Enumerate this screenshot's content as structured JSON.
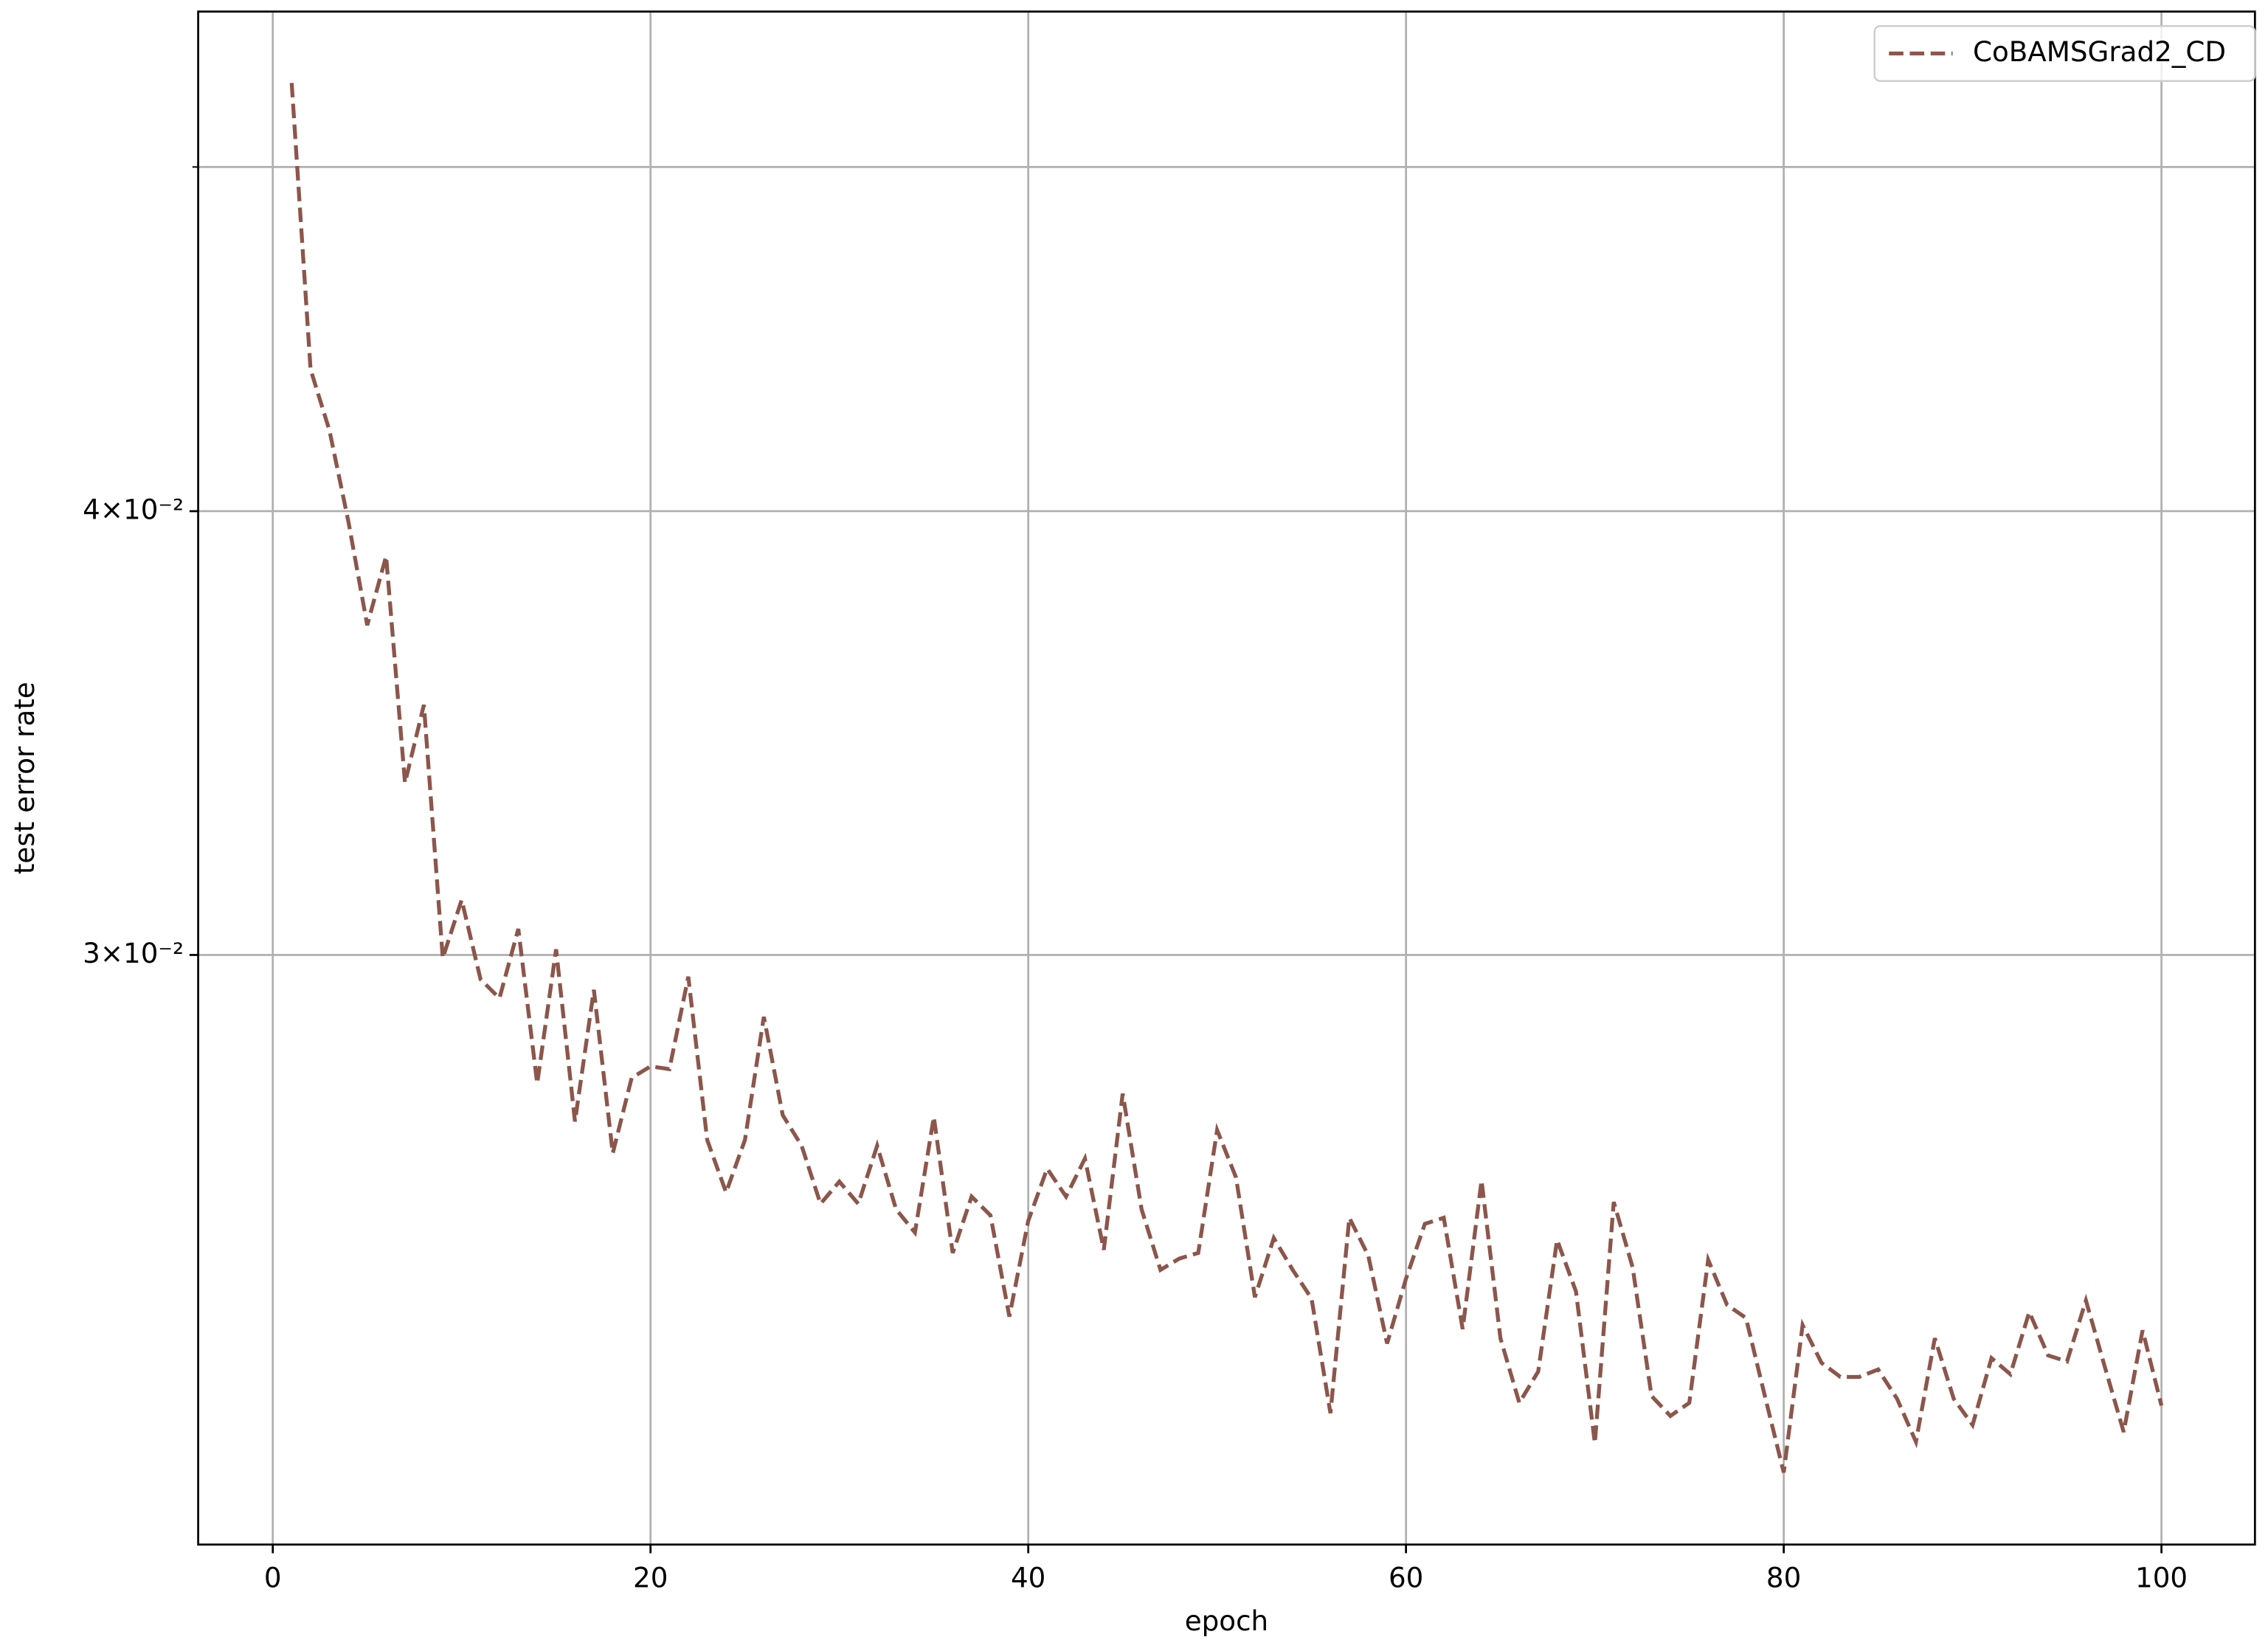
{
  "chart_data": {
    "type": "line",
    "xlabel": "epoch",
    "ylabel": "test error rate",
    "x": [
      1,
      2,
      3,
      4,
      5,
      6,
      7,
      8,
      9,
      10,
      11,
      12,
      13,
      14,
      15,
      16,
      17,
      18,
      19,
      20,
      21,
      22,
      23,
      24,
      25,
      26,
      27,
      28,
      29,
      30,
      31,
      32,
      33,
      34,
      35,
      36,
      37,
      38,
      39,
      40,
      41,
      42,
      43,
      44,
      45,
      46,
      47,
      48,
      49,
      50,
      51,
      52,
      53,
      54,
      55,
      56,
      57,
      58,
      59,
      60,
      61,
      62,
      63,
      64,
      65,
      66,
      67,
      68,
      69,
      70,
      71,
      72,
      73,
      74,
      75,
      76,
      77,
      78,
      79,
      80,
      81,
      82,
      83,
      84,
      85,
      86,
      87,
      88,
      89,
      90,
      91,
      92,
      93,
      94,
      95,
      96,
      97,
      98,
      99,
      100
    ],
    "series": [
      {
        "name": "CoBAMSGrad2_CD",
        "color": "#8c564b",
        "dashed": true,
        "values": [
          0.0528,
          0.04385,
          0.04215,
          0.03974,
          0.03715,
          0.03885,
          0.03354,
          0.03528,
          0.02994,
          0.03109,
          0.02953,
          0.02917,
          0.03051,
          0.0276,
          0.03011,
          0.02693,
          0.02933,
          0.02638,
          0.0277,
          0.02791,
          0.02786,
          0.02958,
          0.02661,
          0.02572,
          0.02661,
          0.02882,
          0.02704,
          0.02651,
          0.02553,
          0.0259,
          0.02553,
          0.02651,
          0.02544,
          0.02506,
          0.02701,
          0.02473,
          0.02565,
          0.02534,
          0.02373,
          0.02525,
          0.02612,
          0.02565,
          0.02629,
          0.02478,
          0.02742,
          0.02544,
          0.02446,
          0.02464,
          0.02473,
          0.02678,
          0.02597,
          0.02403,
          0.02497,
          0.02446,
          0.02401,
          0.02229,
          0.0253,
          0.02469,
          0.02332,
          0.02432,
          0.0252,
          0.0253,
          0.02354,
          0.02592,
          0.0234,
          0.02244,
          0.0229,
          0.02494,
          0.02412,
          0.02186,
          0.02556,
          0.0245,
          0.02254,
          0.02225,
          0.02244,
          0.02462,
          0.02391,
          0.02371,
          0.02254,
          0.02145,
          0.0236,
          0.02303,
          0.02282,
          0.02282,
          0.02293,
          0.0225,
          0.02188,
          0.0234,
          0.0225,
          0.02212,
          0.0231,
          0.02286,
          0.0238,
          0.02314,
          0.02305,
          0.02398,
          0.02297,
          0.02202,
          0.02352,
          0.0224
        ]
      }
    ],
    "xlim": [
      -3.95,
      104.95
    ],
    "xticks": [
      0,
      20,
      40,
      60,
      80,
      100
    ],
    "ylim": [
      0.02047,
      0.0553
    ],
    "log_y": true,
    "yticks": [
      {
        "value": 0.03,
        "label": "3×10⁻²"
      },
      {
        "value": 0.04,
        "label": "4×10⁻²"
      }
    ],
    "minor_yticks": [
      0.05
    ],
    "grid": true,
    "legend": "upper right"
  }
}
